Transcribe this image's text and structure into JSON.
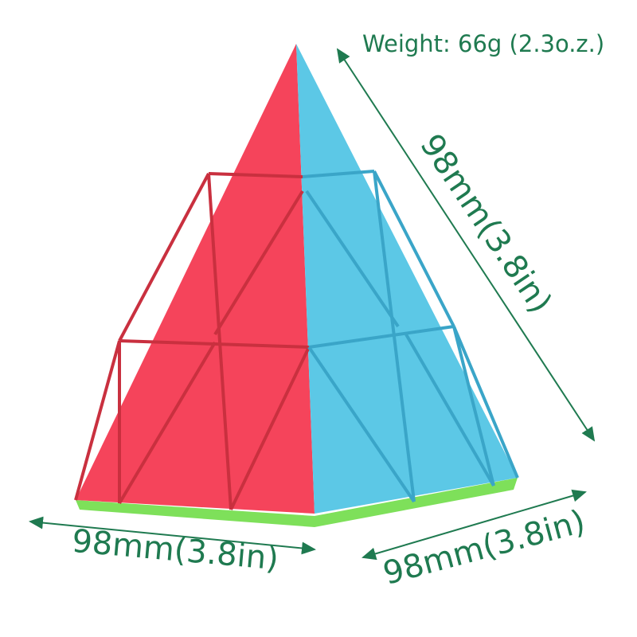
{
  "annotations": {
    "weight": "Weight: 66g (2.3o.z.)",
    "height_dim": "98mm(3.8in)",
    "left_base_dim": "98mm(3.8in)",
    "right_base_dim": "98mm(3.8in)"
  },
  "colors": {
    "text": "#1f7a50",
    "red_face": "#f5445b",
    "blue_face": "#5cc8e6",
    "green_base": "#7ee05a"
  }
}
